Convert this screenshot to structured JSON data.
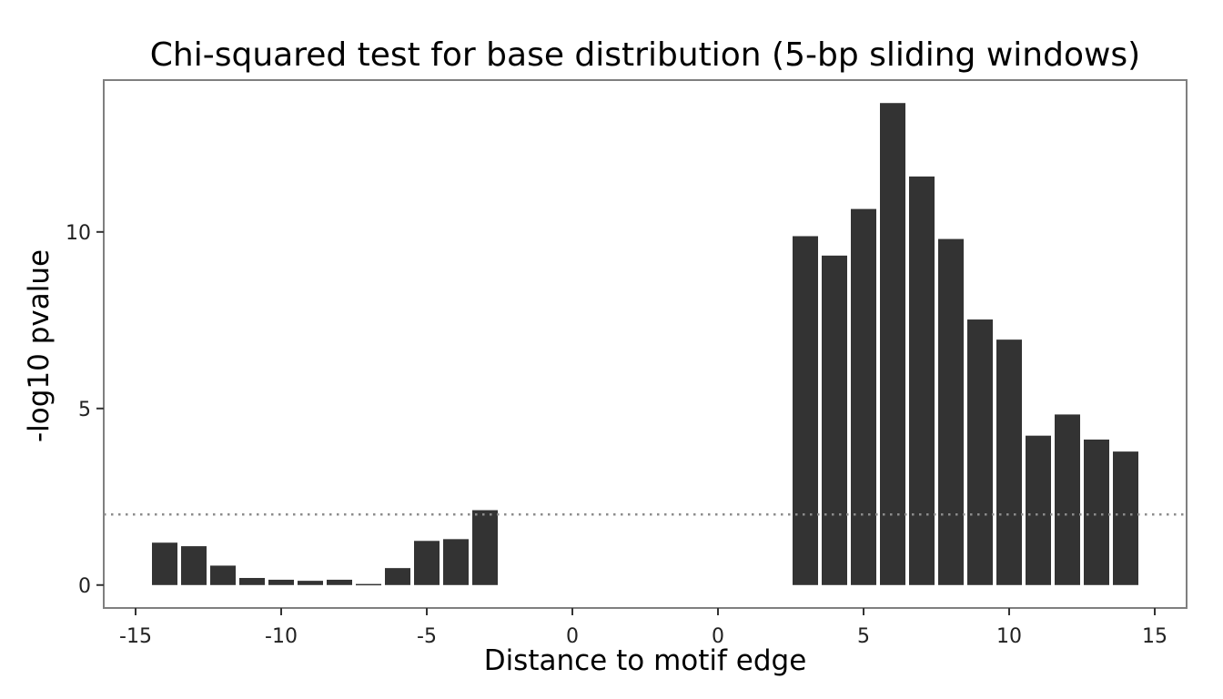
{
  "chart_data": {
    "type": "bar",
    "title": "Chi-squared test for base distribution (5-bp sliding windows)",
    "xlabel": "Distance to motif edge",
    "ylabel": "-log10 pvalue",
    "xticks": [
      "-15",
      "-10",
      "-5",
      "0",
      "0",
      "5",
      "10",
      "15"
    ],
    "yticks": [
      0,
      5,
      10
    ],
    "ylim": [
      -0.65,
      14.3
    ],
    "threshold": 2,
    "threshold_style": "dotted",
    "bar_color": "#333333",
    "grid": false,
    "segments": [
      {
        "x": [
          -14,
          -13,
          -12,
          -11,
          -10,
          -9,
          -8,
          -7,
          -6,
          -5,
          -4,
          -3
        ],
        "values": [
          1.2,
          1.1,
          0.55,
          0.2,
          0.15,
          0.12,
          0.15,
          0.03,
          0.48,
          1.25,
          1.3,
          2.12
        ]
      },
      {
        "x": [
          3,
          4,
          5,
          6,
          7,
          8,
          9,
          10,
          11,
          12,
          13,
          14
        ],
        "values": [
          9.88,
          9.33,
          10.65,
          13.65,
          11.57,
          9.8,
          7.52,
          6.95,
          4.23,
          4.83,
          4.12,
          3.78
        ]
      }
    ]
  }
}
